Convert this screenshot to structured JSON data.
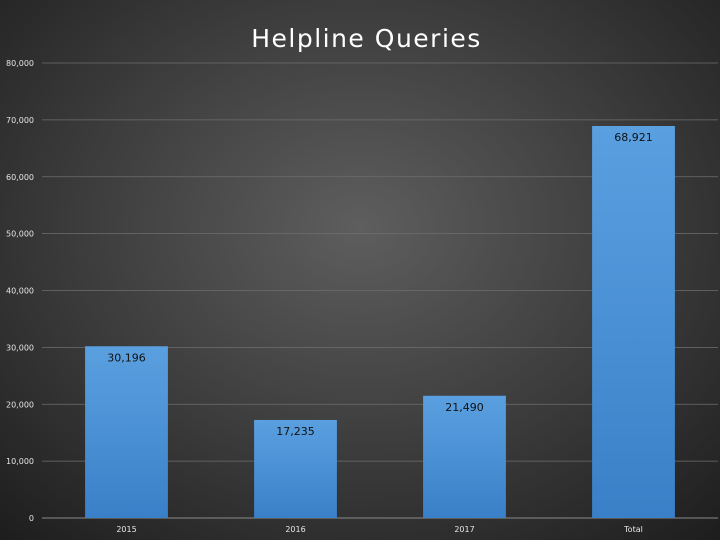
{
  "chart_data": {
    "type": "bar",
    "title": "Helpline Queries",
    "categories": [
      "2015",
      "2016",
      "2017",
      "Total"
    ],
    "values": [
      30196,
      17235,
      21490,
      68921
    ],
    "data_labels": [
      "30,196",
      "17,235",
      "21,490",
      "68,921"
    ],
    "yticks": [
      "0",
      "10,000",
      "20,000",
      "30,000",
      "40,000",
      "50,000",
      "60,000",
      "70,000",
      "80,000"
    ],
    "ylim": [
      0,
      80000
    ],
    "grid": true,
    "legend": "none",
    "bar_color": "#5aa0e0",
    "bar_color_bottom": "#3a80c8"
  }
}
